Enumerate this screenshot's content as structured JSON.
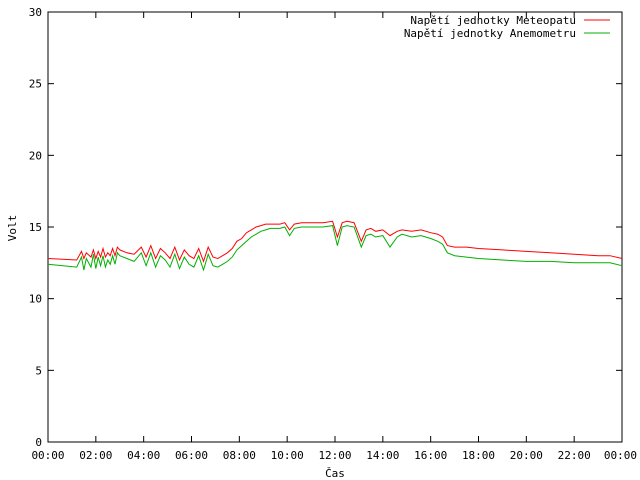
{
  "chart_data": {
    "type": "line",
    "xlabel": "Čas",
    "ylabel": "Volt",
    "ylim": [
      0,
      30
    ],
    "xlim": [
      "00:00",
      "24:00"
    ],
    "y_ticks": [
      "0",
      "5",
      "10",
      "15",
      "20",
      "25",
      "30"
    ],
    "x_ticks": [
      "00:00",
      "02:00",
      "04:00",
      "06:00",
      "08:00",
      "10:00",
      "12:00",
      "14:00",
      "16:00",
      "18:00",
      "20:00",
      "22:00",
      "00:00"
    ],
    "grid": false,
    "legend_position": "top-right",
    "series": [
      {
        "name": "Napětí jednotky Meteopatu",
        "color": "#ff0000",
        "x": [
          0,
          1.2,
          1.4,
          1.5,
          1.6,
          1.8,
          1.9,
          2.0,
          2.1,
          2.2,
          2.3,
          2.4,
          2.5,
          2.6,
          2.7,
          2.8,
          2.9,
          3.0,
          3.3,
          3.6,
          3.9,
          4.1,
          4.3,
          4.5,
          4.7,
          4.9,
          5.1,
          5.3,
          5.5,
          5.7,
          5.9,
          6.1,
          6.3,
          6.5,
          6.7,
          6.9,
          7.1,
          7.3,
          7.5,
          7.7,
          7.9,
          8.1,
          8.3,
          8.5,
          8.7,
          8.9,
          9.1,
          9.3,
          9.5,
          9.7,
          9.9,
          10.1,
          10.3,
          10.6,
          11.0,
          11.5,
          11.9,
          12.1,
          12.3,
          12.5,
          12.8,
          13.1,
          13.3,
          13.5,
          13.7,
          14.0,
          14.3,
          14.6,
          14.8,
          15.2,
          15.6,
          16.0,
          16.3,
          16.5,
          16.7,
          17.0,
          17.5,
          18.0,
          19.0,
          20.0,
          21.0,
          22.0,
          23.0,
          23.5,
          24.0
        ],
        "y": [
          12.8,
          12.7,
          13.3,
          12.8,
          13.2,
          12.9,
          13.4,
          12.8,
          13.3,
          12.9,
          13.5,
          12.9,
          13.2,
          13.0,
          13.5,
          13.0,
          13.6,
          13.4,
          13.2,
          13.1,
          13.6,
          12.9,
          13.7,
          12.8,
          13.5,
          13.2,
          12.8,
          13.6,
          12.7,
          13.4,
          13.0,
          12.8,
          13.5,
          12.6,
          13.6,
          12.9,
          12.8,
          13.0,
          13.2,
          13.5,
          14.0,
          14.2,
          14.6,
          14.8,
          15.0,
          15.1,
          15.2,
          15.2,
          15.2,
          15.2,
          15.3,
          14.8,
          15.2,
          15.3,
          15.3,
          15.3,
          15.4,
          14.3,
          15.3,
          15.4,
          15.3,
          14.0,
          14.8,
          14.9,
          14.7,
          14.8,
          14.4,
          14.7,
          14.8,
          14.7,
          14.8,
          14.6,
          14.5,
          14.3,
          13.7,
          13.6,
          13.6,
          13.5,
          13.4,
          13.3,
          13.2,
          13.1,
          13.0,
          13.0,
          12.8
        ]
      },
      {
        "name": "Napětí jednotky Anemometru",
        "color": "#00b000",
        "x": [
          0,
          1.2,
          1.4,
          1.5,
          1.6,
          1.8,
          1.9,
          2.0,
          2.1,
          2.2,
          2.3,
          2.4,
          2.5,
          2.6,
          2.7,
          2.8,
          2.9,
          3.0,
          3.3,
          3.6,
          3.9,
          4.1,
          4.3,
          4.5,
          4.7,
          4.9,
          5.1,
          5.3,
          5.5,
          5.7,
          5.9,
          6.1,
          6.3,
          6.5,
          6.7,
          6.9,
          7.1,
          7.3,
          7.5,
          7.7,
          7.9,
          8.1,
          8.3,
          8.5,
          8.7,
          8.9,
          9.1,
          9.3,
          9.5,
          9.7,
          9.9,
          10.1,
          10.3,
          10.6,
          11.0,
          11.5,
          11.9,
          12.1,
          12.3,
          12.5,
          12.8,
          13.1,
          13.3,
          13.5,
          13.7,
          14.0,
          14.3,
          14.6,
          14.8,
          15.2,
          15.6,
          16.0,
          16.3,
          16.5,
          16.7,
          17.0,
          17.5,
          18.0,
          19.0,
          20.0,
          21.0,
          22.0,
          23.0,
          23.5,
          24.0
        ],
        "y": [
          12.4,
          12.2,
          12.9,
          12.0,
          12.8,
          12.2,
          13.1,
          12.1,
          12.9,
          12.3,
          13.0,
          12.2,
          12.7,
          12.4,
          13.0,
          12.4,
          13.2,
          13.0,
          12.8,
          12.6,
          13.2,
          12.3,
          13.2,
          12.2,
          13.0,
          12.7,
          12.2,
          13.1,
          12.1,
          12.9,
          12.4,
          12.2,
          13.0,
          12.0,
          13.1,
          12.3,
          12.2,
          12.4,
          12.6,
          12.9,
          13.4,
          13.7,
          14.0,
          14.3,
          14.5,
          14.7,
          14.8,
          14.9,
          14.9,
          14.9,
          15.0,
          14.4,
          14.9,
          15.0,
          15.0,
          15.0,
          15.1,
          13.7,
          15.0,
          15.1,
          15.0,
          13.6,
          14.4,
          14.5,
          14.3,
          14.4,
          13.6,
          14.3,
          14.5,
          14.3,
          14.4,
          14.2,
          14.0,
          13.8,
          13.2,
          13.0,
          12.9,
          12.8,
          12.7,
          12.6,
          12.6,
          12.5,
          12.5,
          12.5,
          12.3
        ]
      }
    ]
  }
}
